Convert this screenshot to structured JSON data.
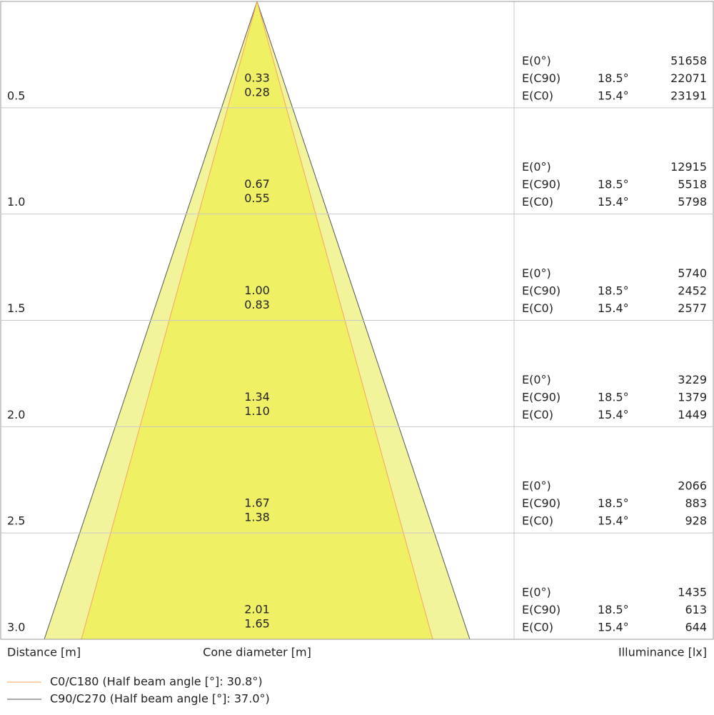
{
  "rows": [
    {
      "distance": "0.5",
      "diameters": [
        "0.33",
        "0.28"
      ],
      "illuminance": [
        {
          "label": "E(0°)",
          "value": "51658"
        },
        {
          "label": "E(C90)",
          "angle": "18.5°",
          "value": "22071"
        },
        {
          "label": "E(C0)",
          "angle": "15.4°",
          "value": "23191"
        }
      ]
    },
    {
      "distance": "1.0",
      "diameters": [
        "0.67",
        "0.55"
      ],
      "illuminance": [
        {
          "label": "E(0°)",
          "value": "12915"
        },
        {
          "label": "E(C90)",
          "angle": "18.5°",
          "value": "5518"
        },
        {
          "label": "E(C0)",
          "angle": "15.4°",
          "value": "5798"
        }
      ]
    },
    {
      "distance": "1.5",
      "diameters": [
        "1.00",
        "0.83"
      ],
      "illuminance": [
        {
          "label": "E(0°)",
          "value": "5740"
        },
        {
          "label": "E(C90)",
          "angle": "18.5°",
          "value": "2452"
        },
        {
          "label": "E(C0)",
          "angle": "15.4°",
          "value": "2577"
        }
      ]
    },
    {
      "distance": "2.0",
      "diameters": [
        "1.34",
        "1.10"
      ],
      "illuminance": [
        {
          "label": "E(0°)",
          "value": "3229"
        },
        {
          "label": "E(C90)",
          "angle": "18.5°",
          "value": "1379"
        },
        {
          "label": "E(C0)",
          "angle": "15.4°",
          "value": "1449"
        }
      ]
    },
    {
      "distance": "2.5",
      "diameters": [
        "1.67",
        "1.38"
      ],
      "illuminance": [
        {
          "label": "E(0°)",
          "value": "2066"
        },
        {
          "label": "E(C90)",
          "angle": "18.5°",
          "value": "883"
        },
        {
          "label": "E(C0)",
          "angle": "15.4°",
          "value": "928"
        }
      ]
    },
    {
      "distance": "3.0",
      "diameters": [
        "2.01",
        "1.65"
      ],
      "illuminance": [
        {
          "label": "E(0°)",
          "value": "1435"
        },
        {
          "label": "E(C90)",
          "angle": "18.5°",
          "value": "613"
        },
        {
          "label": "E(C0)",
          "angle": "15.4°",
          "value": "644"
        }
      ]
    }
  ],
  "footer": {
    "distance": "Distance [m]",
    "diameter": "Cone diameter [m]",
    "illuminance": "Illuminance [lx]"
  },
  "legend": [
    {
      "name": "C0/C180 (Half beam angle [°]: 30.8°)",
      "color": "#f4a460"
    },
    {
      "name": "C90/C270 (Half beam angle [°]: 37.0°)",
      "color": "#555555"
    }
  ]
}
